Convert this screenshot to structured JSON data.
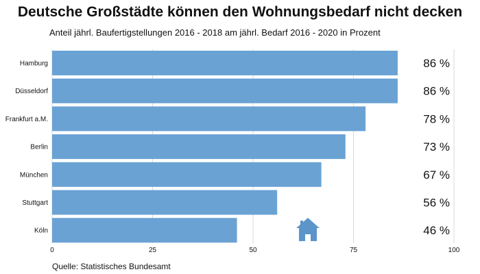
{
  "title": "Deutsche Großstädte können den Wohnungsbedarf nicht decken",
  "subtitle": "Anteil jährl. Baufertigstellungen 2016 - 2018 am jährl. Bedarf 2016 - 2020 in Prozent",
  "source": "Quelle: Statistisches Bundesamt",
  "icon": "house-icon",
  "colors": {
    "bar": "#6aa2d4",
    "icon": "#5b95c9",
    "grid": "#d9d9d9"
  },
  "chart_data": {
    "type": "bar",
    "orientation": "horizontal",
    "categories": [
      "Hamburg",
      "Düsseldorf",
      "Frankfurt a.M.",
      "Berlin",
      "München",
      "Stuttgart",
      "Köln"
    ],
    "values": [
      86,
      86,
      78,
      73,
      67,
      56,
      46
    ],
    "value_labels": [
      "86 %",
      "86 %",
      "78 %",
      "73 %",
      "67 %",
      "56 %",
      "46 %"
    ],
    "xlim": [
      0,
      100
    ],
    "xticks": [
      0,
      25,
      50,
      75,
      100
    ],
    "grid": true
  }
}
